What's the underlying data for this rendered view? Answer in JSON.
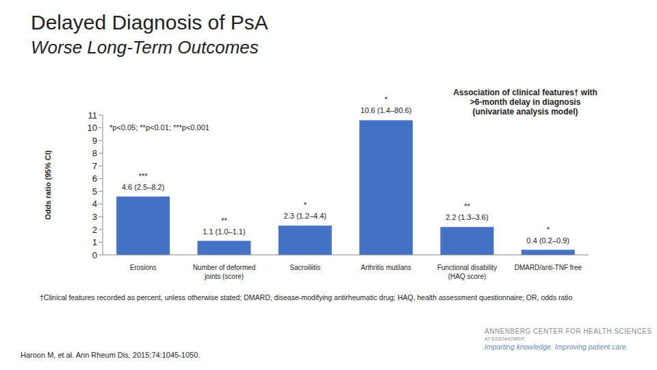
{
  "chart_data": {
    "type": "bar",
    "title": "Delayed Diagnosis of PsA",
    "subtitle": "Worse Long-Term Outcomes",
    "y_label": "Odds ratio (95% CI)",
    "categories": [
      "Erosions",
      "Number of deformed joints (score)",
      "Sacroiliitis",
      "Arthritis mutilans",
      "Functional disability (HAQ score)",
      "DMARD/anti-TNF free"
    ],
    "values": [
      4.6,
      1.1,
      2.3,
      10.6,
      2.2,
      0.4
    ],
    "value_labels": [
      "4.6 (2.5–8.2)",
      "1.1 (1.0–1.1)",
      "2.3 (1.2–4.4)",
      "10.6 (1.4–80.6)",
      "2.2 (1.3–3.6)",
      "0.4 (0.2–0.9)"
    ],
    "significance": [
      "***",
      "**",
      "*",
      "*",
      "**",
      "*"
    ],
    "color": "#4472c4",
    "ylim": [
      0,
      11
    ],
    "yticks": [
      0,
      1,
      2,
      3,
      4,
      5,
      6,
      7,
      8,
      9,
      10,
      11
    ],
    "grid": false,
    "data_labels": true,
    "annotations": [
      "*p<0.05; **p<0.01; ***p<0.001",
      "Association of clinical features† with >6-month delay in diagnosis (univariate analysis model)",
      "†Clinical features recorded as percent, unless otherwise stated; DMARD, disease-modifying antirheumatic drug; HAQ, health assessment questionnaire; OR, odds ratio",
      "Haroon M, et al. Ann Rheum Dis. 2015;74:1045-1050.",
      "ANNENBERG CENTER FOR HEALTH SCIENCES",
      "AT EISENHOWER",
      "Imparting knowledge. Improving patient care."
    ]
  }
}
